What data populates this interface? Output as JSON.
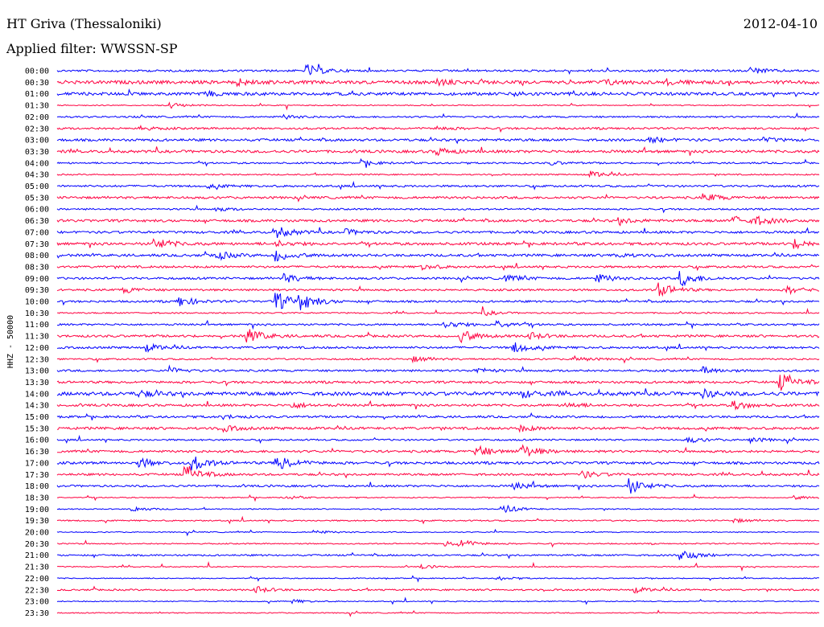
{
  "header": {
    "station": "HT Griva (Thessaloniki)",
    "date": "2012-04-10",
    "filter_label": "Applied filter: WWSSN-SP"
  },
  "chart_data": {
    "type": "line",
    "title": "HT Griva (Thessaloniki)",
    "ylabel": "HHZ - 50000",
    "colors": [
      "#0000ff",
      "#ff0040"
    ],
    "rows": [
      "00:00",
      "00:30",
      "01:00",
      "01:30",
      "02:00",
      "02:30",
      "03:00",
      "03:30",
      "04:00",
      "04:30",
      "05:00",
      "05:30",
      "06:00",
      "06:30",
      "07:00",
      "07:30",
      "08:00",
      "08:30",
      "09:00",
      "09:30",
      "10:00",
      "10:30",
      "11:00",
      "11:30",
      "12:00",
      "12:30",
      "13:00",
      "13:30",
      "14:00",
      "14:30",
      "15:00",
      "15:30",
      "16:00",
      "16:30",
      "17:00",
      "17:30",
      "18:00",
      "18:30",
      "19:00",
      "19:30",
      "20:00",
      "20:30",
      "21:00",
      "21:30",
      "22:00",
      "22:30",
      "23:00",
      "23:30"
    ],
    "noise": [
      1.2,
      2.0,
      1.8,
      0.6,
      1.0,
      1.2,
      1.5,
      1.6,
      1.0,
      0.8,
      1.2,
      1.4,
      1.0,
      1.5,
      1.4,
      1.6,
      1.5,
      1.3,
      1.3,
      1.2,
      1.2,
      0.8,
      1.1,
      1.4,
      1.3,
      1.0,
      1.2,
      1.4,
      2.2,
      1.4,
      1.3,
      1.5,
      1.0,
      1.4,
      1.5,
      1.3,
      1.2,
      0.6,
      0.6,
      0.8,
      0.6,
      0.7,
      1.0,
      0.6,
      0.6,
      1.0,
      0.6,
      0.6
    ],
    "events": [
      [
        [
          0.33,
          7
        ],
        [
          0.91,
          4
        ]
      ],
      [
        [
          0.24,
          3
        ],
        [
          0.5,
          3
        ],
        [
          0.72,
          3
        ],
        [
          0.8,
          3
        ]
      ],
      [
        [
          0.2,
          2
        ],
        [
          0.6,
          2
        ]
      ],
      [
        [
          0.15,
          3
        ]
      ],
      [
        [
          0.3,
          2
        ]
      ],
      [
        [
          0.11,
          2
        ],
        [
          0.5,
          2
        ]
      ],
      [
        [
          0.78,
          3
        ],
        [
          0.93,
          2
        ]
      ],
      [
        [
          0.5,
          4
        ]
      ],
      [
        [
          0.4,
          3
        ],
        [
          0.65,
          2
        ]
      ],
      [
        [
          0.7,
          4
        ]
      ],
      [
        [
          0.2,
          2
        ]
      ],
      [
        [
          0.85,
          5
        ]
      ],
      [
        [
          0.21,
          2
        ]
      ],
      [
        [
          0.74,
          3
        ],
        [
          0.89,
          5
        ],
        [
          0.92,
          4
        ]
      ],
      [
        [
          0.29,
          6
        ],
        [
          0.38,
          3
        ]
      ],
      [
        [
          0.13,
          6
        ],
        [
          0.29,
          3
        ],
        [
          0.97,
          5
        ]
      ],
      [
        [
          0.21,
          5
        ],
        [
          0.29,
          6
        ],
        [
          0.73,
          3
        ]
      ],
      [
        [
          0.48,
          3
        ]
      ],
      [
        [
          0.3,
          5
        ],
        [
          0.59,
          4
        ],
        [
          0.71,
          5
        ],
        [
          0.82,
          9
        ]
      ],
      [
        [
          0.09,
          3
        ],
        [
          0.79,
          9
        ],
        [
          0.96,
          4
        ]
      ],
      [
        [
          0.16,
          6
        ],
        [
          0.29,
          10
        ],
        [
          0.32,
          9
        ]
      ],
      [
        [
          0.56,
          3
        ]
      ],
      [
        [
          0.51,
          5
        ],
        [
          0.58,
          4
        ]
      ],
      [
        [
          0.25,
          9
        ],
        [
          0.53,
          7
        ],
        [
          0.62,
          4
        ]
      ],
      [
        [
          0.12,
          4
        ],
        [
          0.6,
          6
        ]
      ],
      [
        [
          0.47,
          3
        ],
        [
          0.68,
          3
        ]
      ],
      [
        [
          0.15,
          3
        ],
        [
          0.55,
          3
        ],
        [
          0.85,
          4
        ]
      ],
      [
        [
          0.95,
          10
        ]
      ],
      [
        [
          0.11,
          3
        ],
        [
          0.61,
          4
        ],
        [
          0.85,
          4
        ]
      ],
      [
        [
          0.31,
          3
        ],
        [
          0.67,
          3
        ],
        [
          0.89,
          5
        ]
      ],
      [
        [
          0.22,
          2
        ]
      ],
      [
        [
          0.22,
          3
        ],
        [
          0.61,
          3
        ]
      ],
      [
        [
          0.83,
          3
        ],
        [
          0.91,
          3
        ]
      ],
      [
        [
          0.55,
          7
        ],
        [
          0.61,
          8
        ]
      ],
      [
        [
          0.11,
          5
        ],
        [
          0.18,
          8
        ],
        [
          0.29,
          10
        ]
      ],
      [
        [
          0.17,
          9
        ],
        [
          0.69,
          4
        ]
      ],
      [
        [
          0.6,
          4
        ],
        [
          0.75,
          10
        ]
      ],
      [
        [
          0.3,
          2
        ],
        [
          0.97,
          2
        ]
      ],
      [
        [
          0.1,
          3
        ],
        [
          0.59,
          4
        ]
      ],
      [
        [
          0.89,
          2
        ]
      ],
      [
        [
          0.34,
          2
        ]
      ],
      [
        [
          0.51,
          3
        ],
        [
          0.53,
          4
        ]
      ],
      [
        [
          0.82,
          7
        ]
      ],
      [
        [
          0.48,
          2
        ]
      ],
      [
        [
          0.58,
          2
        ]
      ],
      [
        [
          0.26,
          4
        ],
        [
          0.76,
          3
        ]
      ],
      [
        [
          0.31,
          2
        ]
      ],
      []
    ]
  }
}
